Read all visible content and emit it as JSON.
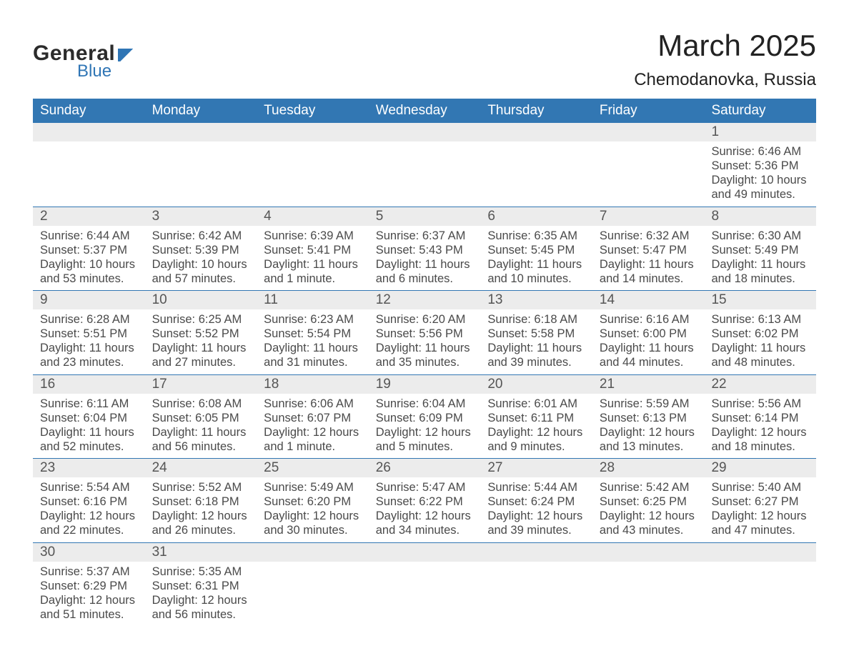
{
  "logo": {
    "text1": "General",
    "text2": "Blue",
    "accent_color": "#2f75b5"
  },
  "title": "March 2025",
  "location": "Chemodanovka, Russia",
  "colors": {
    "header_bg": "#3277b3",
    "header_text": "#ffffff",
    "daynum_bg": "#ececec",
    "daynum_text": "#555555",
    "body_text": "#4a4a4a",
    "week_divider": "#3277b3",
    "page_bg": "#ffffff"
  },
  "typography": {
    "title_fontsize": 42,
    "location_fontsize": 24,
    "dayhead_fontsize": 19,
    "daynum_fontsize": 19,
    "detail_fontsize": 16.5,
    "font_family": "Arial"
  },
  "day_headers": [
    "Sunday",
    "Monday",
    "Tuesday",
    "Wednesday",
    "Thursday",
    "Friday",
    "Saturday"
  ],
  "labels": {
    "sunrise": "Sunrise",
    "sunset": "Sunset",
    "daylight": "Daylight"
  },
  "weeks": [
    [
      null,
      null,
      null,
      null,
      null,
      null,
      {
        "n": "1",
        "sunrise": "6:46 AM",
        "sunset": "5:36 PM",
        "daylight": "10 hours and 49 minutes."
      }
    ],
    [
      {
        "n": "2",
        "sunrise": "6:44 AM",
        "sunset": "5:37 PM",
        "daylight": "10 hours and 53 minutes."
      },
      {
        "n": "3",
        "sunrise": "6:42 AM",
        "sunset": "5:39 PM",
        "daylight": "10 hours and 57 minutes."
      },
      {
        "n": "4",
        "sunrise": "6:39 AM",
        "sunset": "5:41 PM",
        "daylight": "11 hours and 1 minute."
      },
      {
        "n": "5",
        "sunrise": "6:37 AM",
        "sunset": "5:43 PM",
        "daylight": "11 hours and 6 minutes."
      },
      {
        "n": "6",
        "sunrise": "6:35 AM",
        "sunset": "5:45 PM",
        "daylight": "11 hours and 10 minutes."
      },
      {
        "n": "7",
        "sunrise": "6:32 AM",
        "sunset": "5:47 PM",
        "daylight": "11 hours and 14 minutes."
      },
      {
        "n": "8",
        "sunrise": "6:30 AM",
        "sunset": "5:49 PM",
        "daylight": "11 hours and 18 minutes."
      }
    ],
    [
      {
        "n": "9",
        "sunrise": "6:28 AM",
        "sunset": "5:51 PM",
        "daylight": "11 hours and 23 minutes."
      },
      {
        "n": "10",
        "sunrise": "6:25 AM",
        "sunset": "5:52 PM",
        "daylight": "11 hours and 27 minutes."
      },
      {
        "n": "11",
        "sunrise": "6:23 AM",
        "sunset": "5:54 PM",
        "daylight": "11 hours and 31 minutes."
      },
      {
        "n": "12",
        "sunrise": "6:20 AM",
        "sunset": "5:56 PM",
        "daylight": "11 hours and 35 minutes."
      },
      {
        "n": "13",
        "sunrise": "6:18 AM",
        "sunset": "5:58 PM",
        "daylight": "11 hours and 39 minutes."
      },
      {
        "n": "14",
        "sunrise": "6:16 AM",
        "sunset": "6:00 PM",
        "daylight": "11 hours and 44 minutes."
      },
      {
        "n": "15",
        "sunrise": "6:13 AM",
        "sunset": "6:02 PM",
        "daylight": "11 hours and 48 minutes."
      }
    ],
    [
      {
        "n": "16",
        "sunrise": "6:11 AM",
        "sunset": "6:04 PM",
        "daylight": "11 hours and 52 minutes."
      },
      {
        "n": "17",
        "sunrise": "6:08 AM",
        "sunset": "6:05 PM",
        "daylight": "11 hours and 56 minutes."
      },
      {
        "n": "18",
        "sunrise": "6:06 AM",
        "sunset": "6:07 PM",
        "daylight": "12 hours and 1 minute."
      },
      {
        "n": "19",
        "sunrise": "6:04 AM",
        "sunset": "6:09 PM",
        "daylight": "12 hours and 5 minutes."
      },
      {
        "n": "20",
        "sunrise": "6:01 AM",
        "sunset": "6:11 PM",
        "daylight": "12 hours and 9 minutes."
      },
      {
        "n": "21",
        "sunrise": "5:59 AM",
        "sunset": "6:13 PM",
        "daylight": "12 hours and 13 minutes."
      },
      {
        "n": "22",
        "sunrise": "5:56 AM",
        "sunset": "6:14 PM",
        "daylight": "12 hours and 18 minutes."
      }
    ],
    [
      {
        "n": "23",
        "sunrise": "5:54 AM",
        "sunset": "6:16 PM",
        "daylight": "12 hours and 22 minutes."
      },
      {
        "n": "24",
        "sunrise": "5:52 AM",
        "sunset": "6:18 PM",
        "daylight": "12 hours and 26 minutes."
      },
      {
        "n": "25",
        "sunrise": "5:49 AM",
        "sunset": "6:20 PM",
        "daylight": "12 hours and 30 minutes."
      },
      {
        "n": "26",
        "sunrise": "5:47 AM",
        "sunset": "6:22 PM",
        "daylight": "12 hours and 34 minutes."
      },
      {
        "n": "27",
        "sunrise": "5:44 AM",
        "sunset": "6:24 PM",
        "daylight": "12 hours and 39 minutes."
      },
      {
        "n": "28",
        "sunrise": "5:42 AM",
        "sunset": "6:25 PM",
        "daylight": "12 hours and 43 minutes."
      },
      {
        "n": "29",
        "sunrise": "5:40 AM",
        "sunset": "6:27 PM",
        "daylight": "12 hours and 47 minutes."
      }
    ],
    [
      {
        "n": "30",
        "sunrise": "5:37 AM",
        "sunset": "6:29 PM",
        "daylight": "12 hours and 51 minutes."
      },
      {
        "n": "31",
        "sunrise": "5:35 AM",
        "sunset": "6:31 PM",
        "daylight": "12 hours and 56 minutes."
      },
      null,
      null,
      null,
      null,
      null
    ]
  ]
}
